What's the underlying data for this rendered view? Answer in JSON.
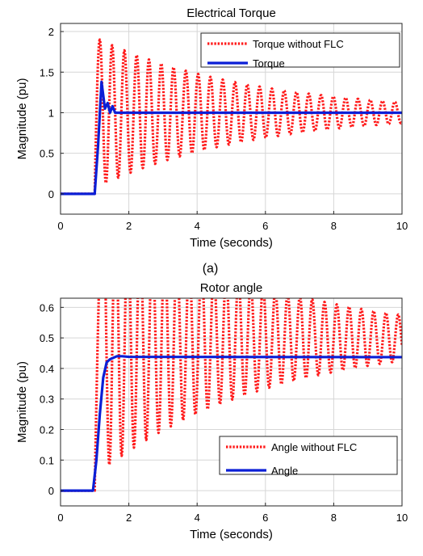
{
  "chart_data": [
    {
      "type": "line",
      "title": "Electrical Torque",
      "xlabel": "Time (seconds)",
      "ylabel": "Magnitude (pu)",
      "xlim": [
        0,
        10
      ],
      "ylim": [
        -0.25,
        2.1
      ],
      "xticks": [
        0,
        2,
        4,
        6,
        8,
        10
      ],
      "yticks": [
        0,
        0.5,
        1,
        1.5,
        2
      ],
      "grid": true,
      "legend_position": "top-right",
      "caption": "(a)",
      "series": [
        {
          "name": "Torque without FLC",
          "color": "#ff1a1a",
          "style": "dotted",
          "model": {
            "step_time": 1.0,
            "rise_end": 1.15,
            "final": 1.0,
            "initial_amp": 0.9,
            "period": 0.36,
            "decay": 0.22
          }
        },
        {
          "name": "Torque",
          "color": "#0b1fd6",
          "style": "solid",
          "points": [
            [
              0,
              0
            ],
            [
              1.0,
              0
            ],
            [
              1.1,
              0.6
            ],
            [
              1.2,
              1.38
            ],
            [
              1.3,
              1.05
            ],
            [
              1.38,
              1.12
            ],
            [
              1.45,
              1.0
            ],
            [
              1.52,
              1.08
            ],
            [
              1.6,
              1.0
            ],
            [
              10,
              1.0
            ]
          ]
        }
      ]
    },
    {
      "type": "line",
      "title": "Rotor angle",
      "xlabel": "Time (seconds)",
      "ylabel": "Magnitude (pu)",
      "xlim": [
        0,
        10
      ],
      "ylim": [
        -0.05,
        0.63
      ],
      "xticks": [
        0,
        2,
        4,
        6,
        8,
        10
      ],
      "yticks": [
        0,
        0.1,
        0.2,
        0.3,
        0.4,
        0.5,
        0.6
      ],
      "grid": true,
      "legend_position": "bottom-right",
      "series": [
        {
          "name": "Angle without FLC",
          "color": "#ff1a1a",
          "style": "dotted",
          "model": {
            "step_time": 1.0,
            "rise_end": 1.25,
            "final": 0.5,
            "initial_amp": 0.43,
            "period": 0.36,
            "decay": 0.2
          }
        },
        {
          "name": "Angle",
          "color": "#0b1fd6",
          "style": "solid",
          "points": [
            [
              0,
              0
            ],
            [
              0.95,
              0
            ],
            [
              1.05,
              0.1
            ],
            [
              1.15,
              0.25
            ],
            [
              1.25,
              0.37
            ],
            [
              1.35,
              0.42
            ],
            [
              1.45,
              0.43
            ],
            [
              1.55,
              0.435
            ],
            [
              1.65,
              0.44
            ],
            [
              1.8,
              0.44
            ],
            [
              2.0,
              0.438
            ],
            [
              10,
              0.437
            ]
          ]
        }
      ]
    }
  ]
}
